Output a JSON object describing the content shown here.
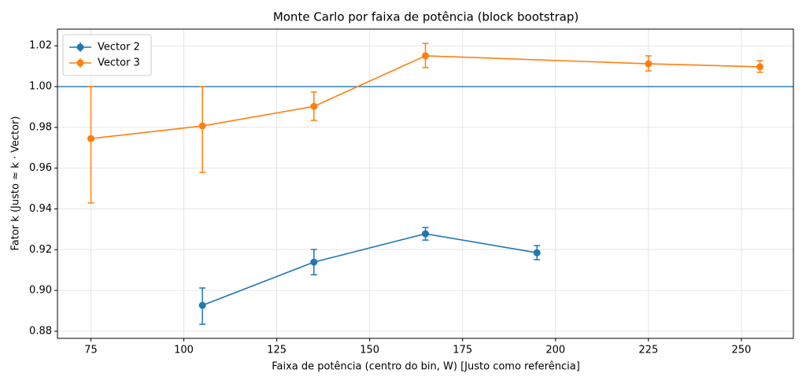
{
  "chart_data": {
    "type": "errorbar",
    "title": "Monte Carlo por faixa de potência (block bootstrap)",
    "x_label": "Faixa de potência (centro do bin, W) [Justo como referência]",
    "y_label": "Fator k (Justo ≈ k · Vector)",
    "series": [
      {
        "name": "Vector 2",
        "color": "#1f77b4",
        "x": [
          105,
          135,
          165,
          195
        ],
        "values": [
          0.8927,
          0.9139,
          0.9278,
          0.9185
        ],
        "err_minus": [
          0.0093,
          0.0062,
          0.0031,
          0.0034
        ],
        "err_plus": [
          0.0085,
          0.0062,
          0.0031,
          0.0035
        ]
      },
      {
        "name": "Vector 3",
        "color": "#ff7f0e",
        "x": [
          75,
          105,
          135,
          165,
          225,
          255
        ],
        "values": [
          0.9745,
          0.9807,
          0.9903,
          1.0151,
          1.0112,
          1.0097
        ],
        "err_minus": [
          0.0316,
          0.0228,
          0.0069,
          0.0058,
          0.0035,
          0.0027
        ],
        "err_plus": [
          0.0255,
          0.0193,
          0.007,
          0.0061,
          0.0039,
          0.003
        ]
      }
    ],
    "hline": {
      "value": 1.0,
      "color": "#1f77b4"
    },
    "xlim": [
      66,
      264
    ],
    "xticks": [
      75,
      100,
      125,
      150,
      175,
      200,
      225,
      250
    ],
    "ylim": [
      0.8765,
      1.0282
    ],
    "yticks": [
      0.88,
      {
        "value": 0.9,
        "label": "0.90"
      },
      0.92,
      0.94,
      0.96,
      0.98,
      {
        "value": 1.0,
        "label": "1.00"
      },
      1.02
    ],
    "grid": true,
    "legend": "upper left"
  }
}
